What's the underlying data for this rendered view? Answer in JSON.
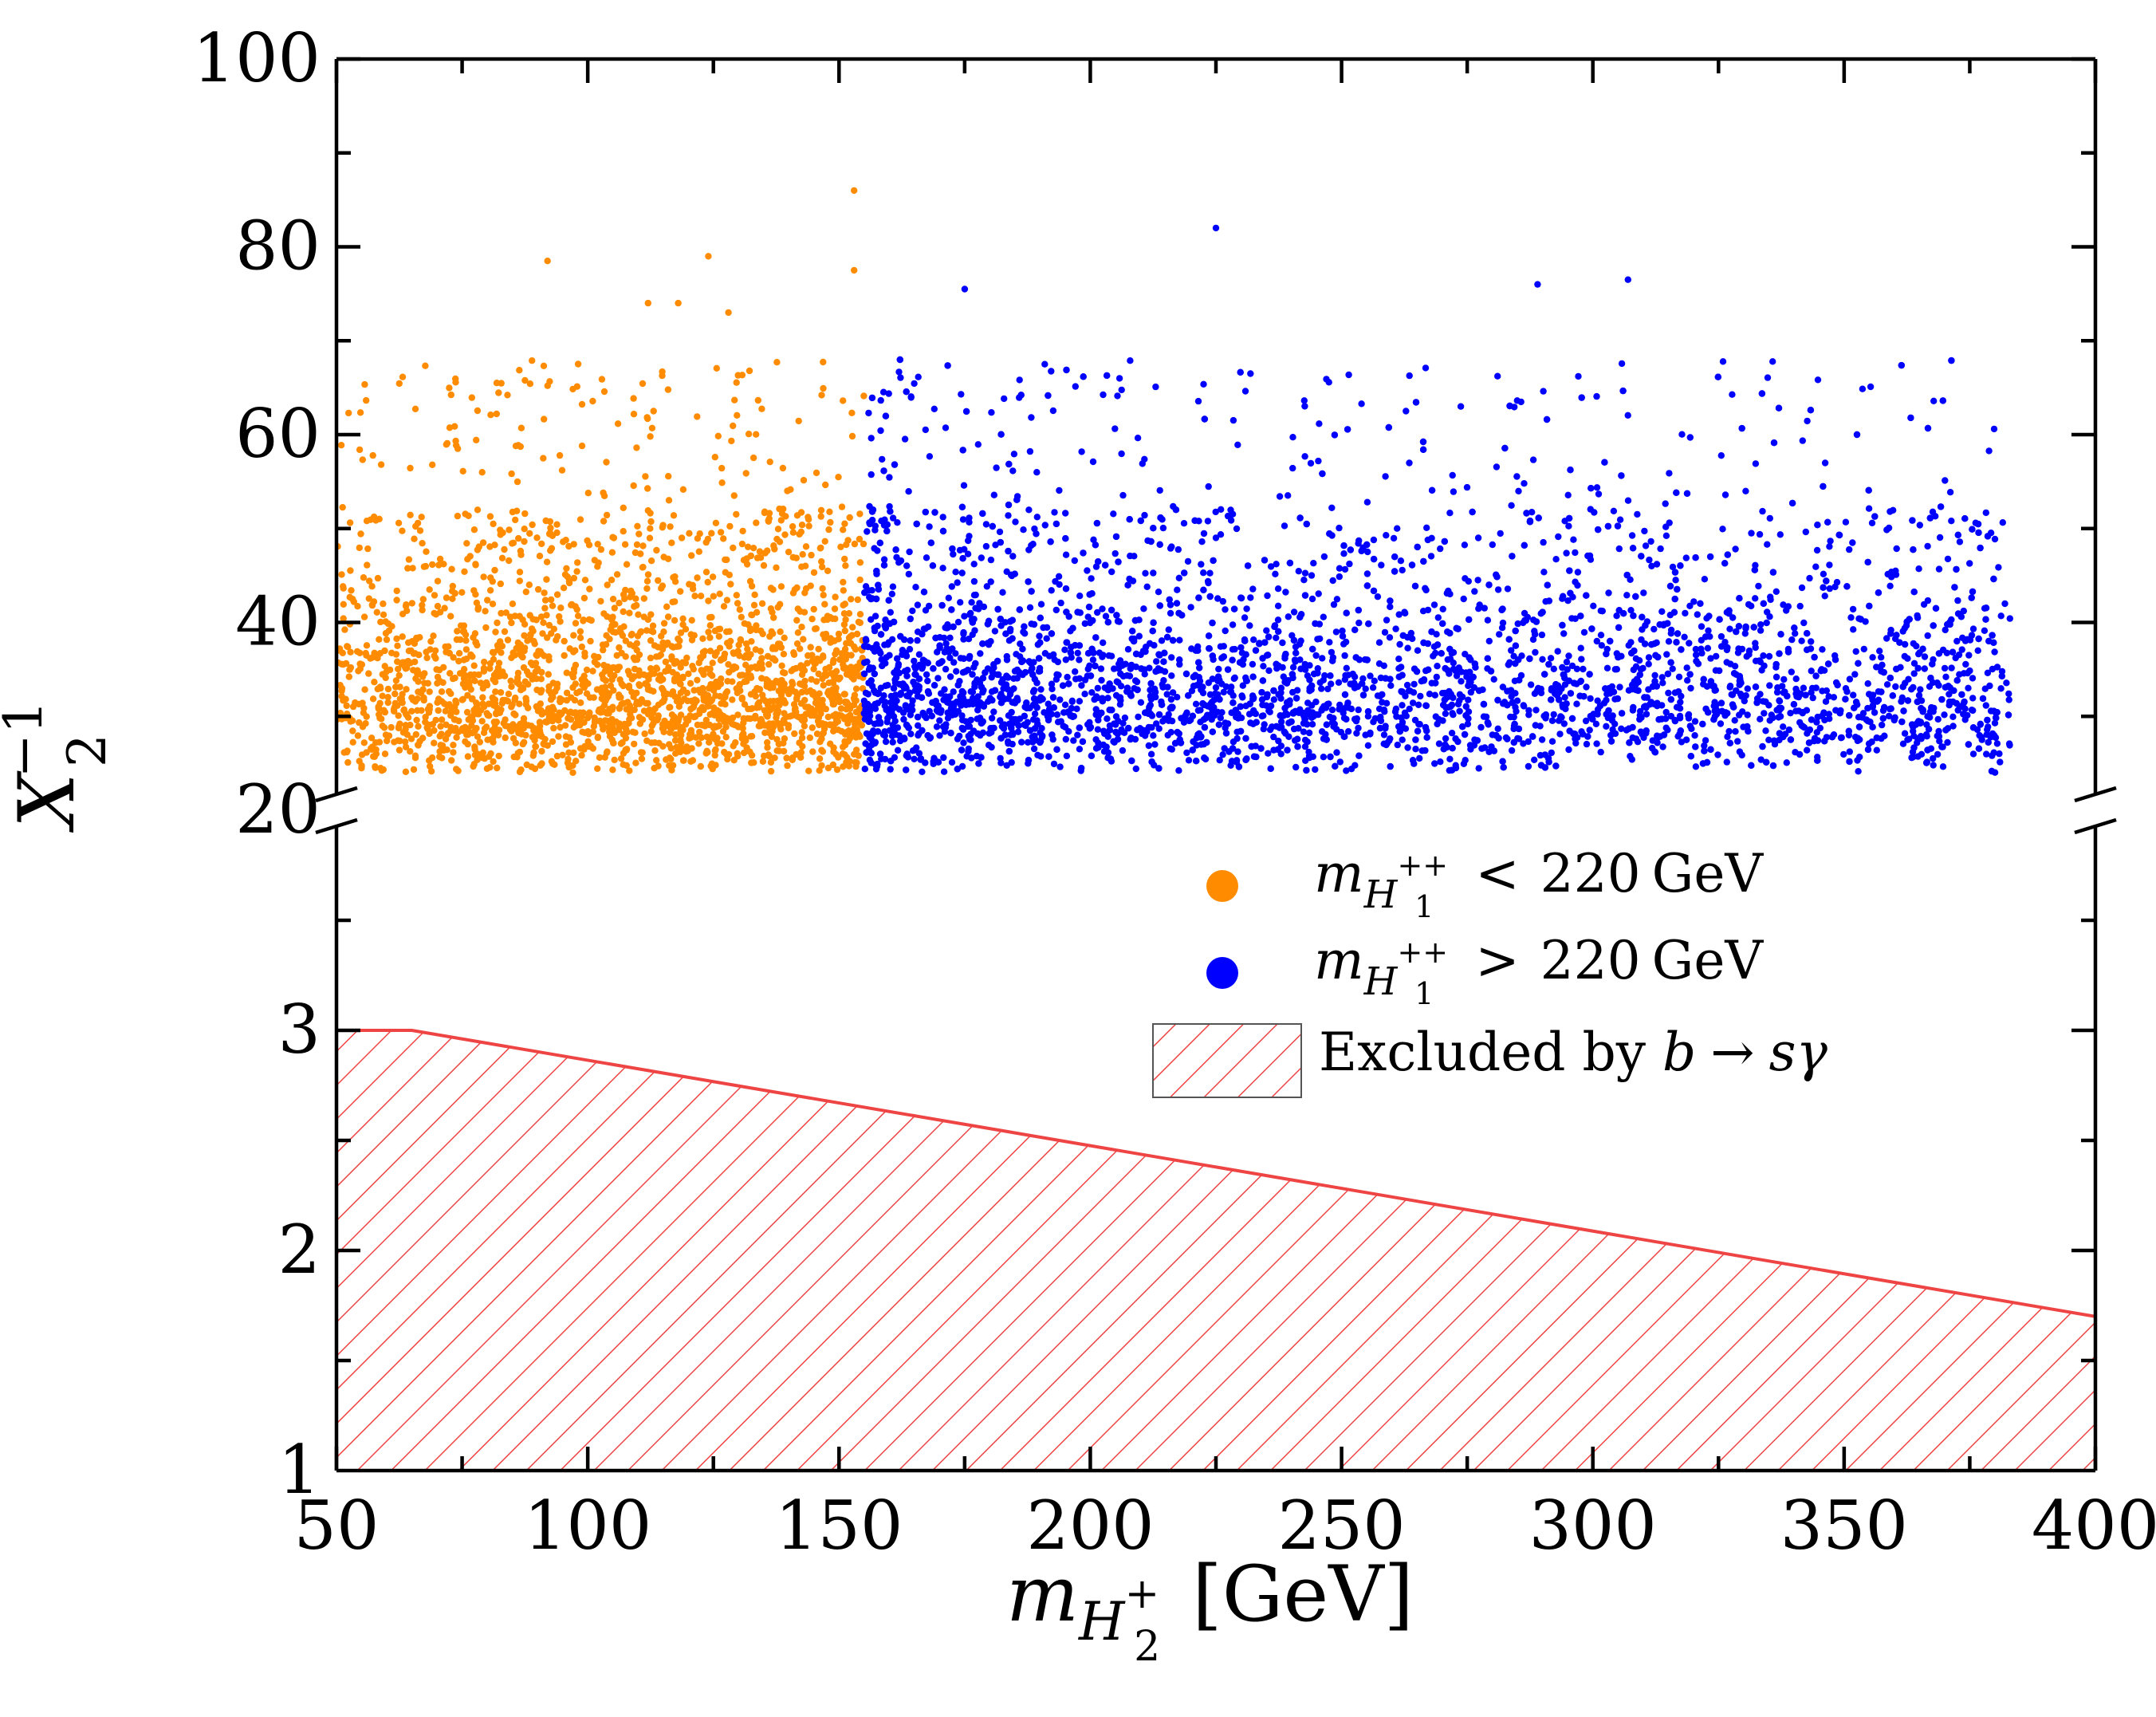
{
  "chart_data": {
    "type": "scatter",
    "title": "",
    "xlabel": {
      "main": "m",
      "sub": "H",
      "subsub": "2",
      "sup": "+",
      "unit": "[GeV]"
    },
    "ylabel": {
      "main": "X",
      "sub": "2",
      "sup": "−1"
    },
    "xlim": [
      50,
      400
    ],
    "x_ticks": [
      50,
      100,
      150,
      200,
      250,
      300,
      350,
      400
    ],
    "x_tick_labels": [
      "50",
      "100",
      "150",
      "200",
      "250",
      "300",
      "350",
      "400"
    ],
    "y_axis_broken": true,
    "y_upper": {
      "ylim": [
        20,
        100
      ],
      "ticks": [
        20,
        40,
        60,
        80,
        100
      ],
      "tick_labels": [
        "20",
        "40",
        "60",
        "80",
        "100"
      ]
    },
    "y_lower": {
      "ylim": [
        1,
        4
      ],
      "ticks": [
        1,
        2,
        3
      ],
      "tick_labels": [
        "1",
        "2",
        "3"
      ]
    },
    "legend": {
      "position": "right-middle",
      "entries": [
        {
          "label": "m_{H_1^{++}} < 220 GeV",
          "var": "m",
          "sub": "H",
          "subsub": "1",
          "sup": "++",
          "relation": "<",
          "value": "220",
          "unit": "GeV",
          "color": "#ff8c00"
        },
        {
          "label": "m_{H_1^{++}} > 220 GeV",
          "var": "m",
          "sub": "H",
          "subsub": "1",
          "sup": "++",
          "relation": ">",
          "value": "220",
          "unit": "GeV",
          "color": "#0000ff"
        },
        {
          "label": "Excluded by b → sγ",
          "text": "Excluded by ",
          "b": "b",
          "arrow": "→",
          "s": "s",
          "gamma": "γ",
          "color": "#ee4444"
        }
      ]
    },
    "series": [
      {
        "name": "m_{H_1^{++}} < 220 GeV",
        "color": "#ff8c00",
        "x_range": [
          50,
          155
        ],
        "y_range": [
          23,
          86
        ],
        "n_points": 2400,
        "typical_y": [
          25,
          45
        ],
        "outliers": [
          [
            153,
            86
          ],
          [
            92,
            78.5
          ],
          [
            124,
            79
          ],
          [
            153,
            77.5
          ],
          [
            112,
            74
          ],
          [
            118,
            74
          ],
          [
            128,
            73
          ]
        ]
      },
      {
        "name": "m_{H_1^{++}} > 220 GeV",
        "color": "#0000ff",
        "x_range": [
          155,
          383
        ],
        "y_range": [
          23,
          82
        ],
        "n_points": 4200,
        "typical_y": [
          25,
          42
        ],
        "outliers": [
          [
            225,
            82
          ],
          [
            289,
            76
          ],
          [
            307,
            76.5
          ],
          [
            175,
            75.5
          ],
          [
            382,
            42
          ]
        ]
      }
    ],
    "excluded_region": {
      "name": "Excluded by b → sγ",
      "color": "#ee4444",
      "boundary_x": [
        50,
        65,
        400
      ],
      "boundary_y": [
        3.0,
        3.0,
        1.7
      ]
    }
  }
}
